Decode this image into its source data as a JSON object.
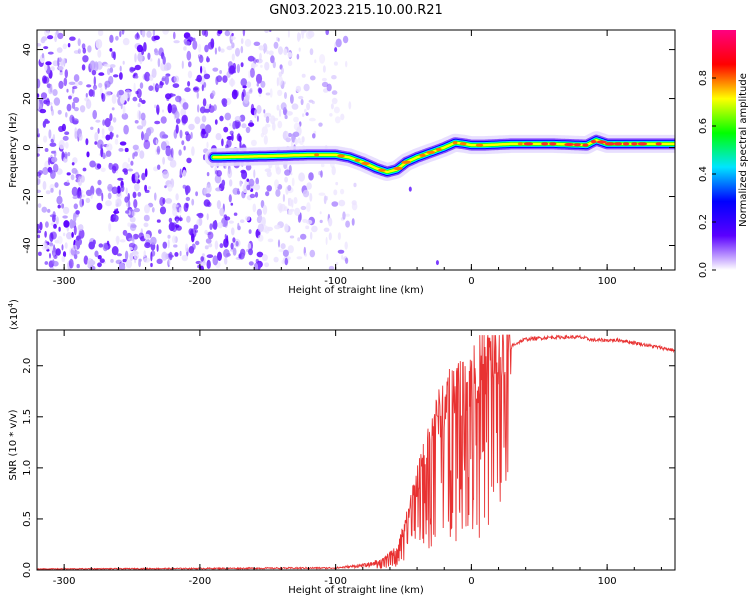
{
  "title": "GN03.2023.215.10.00.R21",
  "colors": {
    "line": "#e83232",
    "axis": "#000000"
  },
  "chart_data": [
    {
      "type": "heatmap",
      "title": "GN03.2023.215.10.00.R21",
      "xlabel": "Height of straight line (km)",
      "ylabel": "Frequency (Hz)",
      "xlim": [
        -320,
        150
      ],
      "ylim": [
        -50,
        48
      ],
      "xticks": [
        -300,
        -200,
        -100,
        0,
        100
      ],
      "xtick_labels": [
        "-300",
        "-200",
        "-100",
        "0",
        "100"
      ],
      "yticks": [
        -40,
        -20,
        0,
        20,
        40
      ],
      "ytick_labels": [
        "-40",
        "-20",
        "0",
        "20",
        "40"
      ],
      "noise_region_x": [
        -320,
        -85
      ],
      "signal_track": {
        "x": [
          -190,
          -150,
          -120,
          -100,
          -90,
          -80,
          -70,
          -62,
          -55,
          -48,
          -40,
          -30,
          -20,
          -12,
          -5,
          0,
          10,
          30,
          60,
          85,
          92,
          100,
          150
        ],
        "y": [
          -4,
          -3.5,
          -3,
          -3,
          -4,
          -6,
          -8.5,
          -10,
          -9,
          -6,
          -4,
          -2,
          0,
          2,
          1.5,
          1,
          1,
          1.5,
          1.5,
          1,
          3,
          1.5,
          1.5
        ]
      },
      "colorbar": {
        "label": "Normalized spectral amplitude",
        "range": [
          0,
          1
        ],
        "ticks": [
          0,
          0.2,
          0.4,
          0.6,
          0.8
        ],
        "tick_labels": [
          "0.0",
          "0.2",
          "0.4",
          "0.6",
          "0.8"
        ],
        "stops": [
          "#ffffff",
          "#5a00ff",
          "#0000ff",
          "#00e5ff",
          "#00ff00",
          "#ffff00",
          "#ff0000",
          "#ff0080"
        ]
      }
    },
    {
      "type": "line",
      "series": [
        {
          "name": "SNR",
          "color": "#e83232"
        }
      ],
      "xlabel": "Height of straight line (km)",
      "ylabel": "SNR (10 * v/v)",
      "scale_label": "(x10",
      "scale_exp": "4",
      "scale_close": ")",
      "xlim": [
        -320,
        150
      ],
      "ylim": [
        0,
        2.35
      ],
      "xticks": [
        -300,
        -200,
        -100,
        0,
        100
      ],
      "xtick_labels": [
        "-300",
        "-200",
        "-100",
        "0",
        "100"
      ],
      "yticks": [
        0,
        0.5,
        1.0,
        1.5,
        2.0
      ],
      "ytick_labels": [
        "0.0",
        "0.5",
        "1.0",
        "1.5",
        "2.0"
      ],
      "envelope": {
        "x": [
          -320,
          -200,
          -100,
          -75,
          -65,
          -55,
          -45,
          -40,
          -30,
          -20,
          -10,
          0,
          10,
          20,
          30,
          40,
          60,
          80,
          90,
          100,
          110,
          150
        ],
        "y": [
          0.01,
          0.015,
          0.02,
          0.05,
          0.1,
          0.2,
          0.6,
          0.85,
          1.3,
          1.6,
          1.75,
          1.85,
          2.0,
          2.1,
          2.2,
          2.26,
          2.28,
          2.28,
          2.25,
          2.25,
          2.25,
          2.15
        ]
      }
    }
  ]
}
